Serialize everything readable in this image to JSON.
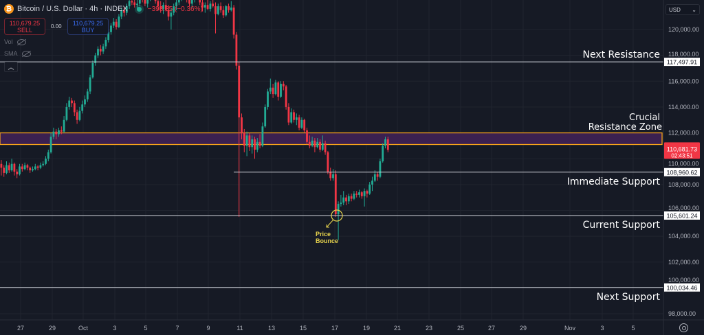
{
  "header": {
    "title": "Bitcoin / U.S. Dollar · 4h · INDEX",
    "change": "−398.35 (−0.36%)",
    "sell_price": "110,679.25",
    "sell_label": "SELL",
    "spread": "0.00",
    "buy_price": "110,679.25",
    "buy_label": "BUY",
    "indicators": [
      "Vol",
      "SMA"
    ],
    "currency": "USD"
  },
  "colors": {
    "background": "#161a25",
    "up": "#22ab94",
    "down": "#f23645",
    "level_line": "#d1d4dc",
    "zone_fill": "#3b2050",
    "zone_border": "#f7a21b",
    "annotation": "#ffffff",
    "bounce": "#e8d44d"
  },
  "chart_data": {
    "type": "candlestick",
    "interval": "4h",
    "title": "Bitcoin / U.S. Dollar · 4h · INDEX",
    "ylim": [
      97400,
      122300
    ],
    "y_ticks": [
      120000,
      118000,
      116000,
      114000,
      112000,
      110000,
      108000,
      106000,
      104000,
      102000,
      100000,
      98000
    ],
    "y_tick_labels": [
      "120,000.00",
      "118,000.00",
      "116,000.00",
      "114,000.00",
      "112,000.00",
      "110,000.00",
      "108,000.00",
      "106,000.00",
      "104,000.00",
      "102,000.00",
      "100,000.00",
      "98,000.00"
    ],
    "x_tick_labels": [
      "27",
      "29",
      "Oct",
      "3",
      "5",
      "7",
      "9",
      "11",
      "13",
      "15",
      "17",
      "19",
      "21",
      "23",
      "25",
      "27",
      "29",
      "Nov",
      "3",
      "5"
    ],
    "grid": true,
    "current_price": {
      "value": "110,681.73",
      "countdown": "02:43:51"
    },
    "candles_ohlc": [
      [
        109600,
        109900,
        108700,
        109300
      ],
      [
        109300,
        109500,
        108600,
        108900
      ],
      [
        108900,
        109800,
        108800,
        109500
      ],
      [
        109500,
        109700,
        108900,
        109100
      ],
      [
        109100,
        110000,
        109000,
        109600
      ],
      [
        109600,
        109700,
        108700,
        109000
      ],
      [
        109000,
        109200,
        108500,
        108800
      ],
      [
        108800,
        109600,
        108700,
        109400
      ],
      [
        109400,
        109600,
        109000,
        109200
      ],
      [
        109200,
        109700,
        109100,
        109500
      ],
      [
        109500,
        109600,
        109100,
        109300
      ],
      [
        109300,
        109400,
        108900,
        109100
      ],
      [
        109100,
        109400,
        109000,
        109200
      ],
      [
        109200,
        109600,
        109100,
        109400
      ],
      [
        109400,
        109500,
        109100,
        109300
      ],
      [
        109300,
        109700,
        109200,
        109500
      ],
      [
        109500,
        109800,
        109400,
        109600
      ],
      [
        109600,
        110200,
        109500,
        110000
      ],
      [
        110000,
        110700,
        109800,
        110500
      ],
      [
        110500,
        112000,
        110400,
        111700
      ],
      [
        111700,
        112400,
        111500,
        112100
      ],
      [
        112100,
        112300,
        111500,
        111900
      ],
      [
        111900,
        112400,
        111700,
        112200
      ],
      [
        112200,
        112500,
        111900,
        112100
      ],
      [
        112100,
        113300,
        112000,
        113000
      ],
      [
        113000,
        114300,
        112900,
        114000
      ],
      [
        114000,
        114800,
        113800,
        114500
      ],
      [
        114500,
        114700,
        114000,
        114300
      ],
      [
        114300,
        114500,
        113300,
        113600
      ],
      [
        113600,
        113800,
        112700,
        113000
      ],
      [
        113000,
        114000,
        112900,
        113700
      ],
      [
        113700,
        114500,
        113500,
        114200
      ],
      [
        114200,
        114900,
        114000,
        114600
      ],
      [
        114600,
        115400,
        114400,
        115200
      ],
      [
        115200,
        116500,
        115000,
        116300
      ],
      [
        116300,
        117600,
        116200,
        117400
      ],
      [
        117400,
        118200,
        117200,
        118000
      ],
      [
        118000,
        118700,
        117800,
        118500
      ],
      [
        118500,
        118800,
        118000,
        118300
      ],
      [
        118300,
        118900,
        118100,
        118700
      ],
      [
        118700,
        119400,
        118500,
        119200
      ],
      [
        119200,
        120000,
        119000,
        119800
      ],
      [
        119800,
        120500,
        119600,
        120300
      ],
      [
        120300,
        120900,
        120100,
        120600
      ],
      [
        120600,
        120800,
        120000,
        120200
      ],
      [
        120200,
        121200,
        120100,
        121000
      ],
      [
        121000,
        121700,
        120800,
        121500
      ],
      [
        121500,
        121700,
        121000,
        121300
      ],
      [
        121300,
        122000,
        121100,
        121800
      ],
      [
        121800,
        122500,
        121600,
        122200
      ],
      [
        122200,
        122600,
        121900,
        122100
      ],
      [
        122100,
        122500,
        121700,
        121900
      ],
      [
        121900,
        122300,
        121500,
        122000
      ],
      [
        122000,
        122800,
        121800,
        122500
      ],
      [
        122500,
        122900,
        122100,
        122300
      ],
      [
        122300,
        122700,
        121800,
        122000
      ],
      [
        122000,
        122600,
        121700,
        122400
      ],
      [
        122400,
        123000,
        122200,
        122700
      ],
      [
        122700,
        123100,
        122300,
        122500
      ],
      [
        122500,
        122900,
        122000,
        122200
      ],
      [
        122200,
        122500,
        121500,
        121800
      ],
      [
        121800,
        122200,
        121300,
        121600
      ],
      [
        121600,
        122100,
        121200,
        121900
      ],
      [
        121900,
        122300,
        121400,
        121500
      ],
      [
        121500,
        121900,
        120700,
        121000
      ],
      [
        121000,
        121600,
        120000,
        121300
      ],
      [
        121300,
        122000,
        121100,
        121800
      ],
      [
        121800,
        122300,
        121500,
        122100
      ],
      [
        122100,
        122700,
        121900,
        122500
      ],
      [
        122500,
        122900,
        122200,
        122800
      ],
      [
        122800,
        123200,
        122400,
        122600
      ],
      [
        122600,
        123000,
        122100,
        122300
      ],
      [
        122300,
        122600,
        121800,
        122000
      ],
      [
        122000,
        122500,
        121700,
        122300
      ],
      [
        122300,
        122900,
        122100,
        122700
      ],
      [
        122700,
        123100,
        122300,
        122400
      ],
      [
        122400,
        122700,
        121900,
        122100
      ],
      [
        122100,
        122500,
        121400,
        121700
      ],
      [
        121700,
        122100,
        121300,
        121900
      ],
      [
        121900,
        122300,
        121500,
        121600
      ],
      [
        121600,
        122200,
        121400,
        122000
      ],
      [
        122000,
        122400,
        121700,
        121800
      ],
      [
        121800,
        122100,
        119700,
        121200
      ],
      [
        121200,
        122000,
        121100,
        121800
      ],
      [
        121800,
        122100,
        121300,
        121500
      ],
      [
        121500,
        121800,
        120900,
        121100
      ],
      [
        121100,
        121900,
        121000,
        121800
      ],
      [
        121800,
        122000,
        121300,
        121500
      ],
      [
        121500,
        122200,
        121400,
        121700
      ],
      [
        121700,
        121900,
        119300,
        119600
      ],
      [
        119600,
        119800,
        116900,
        117200
      ],
      [
        117200,
        117500,
        105500,
        113200
      ],
      [
        113200,
        113500,
        111500,
        112000
      ],
      [
        112000,
        112300,
        110500,
        111000
      ],
      [
        111000,
        112100,
        110200,
        111800
      ],
      [
        111800,
        112000,
        110600,
        110900
      ],
      [
        110900,
        111800,
        110400,
        111500
      ],
      [
        111500,
        111700,
        110000,
        110700
      ],
      [
        110700,
        111600,
        110500,
        111300
      ],
      [
        111300,
        111900,
        110800,
        111000
      ],
      [
        111000,
        112800,
        110900,
        112500
      ],
      [
        112500,
        114200,
        112400,
        114000
      ],
      [
        114000,
        115400,
        113800,
        115200
      ],
      [
        115200,
        116200,
        115000,
        115500
      ],
      [
        115500,
        115800,
        114700,
        115000
      ],
      [
        115000,
        116100,
        114900,
        115900
      ],
      [
        115900,
        116000,
        114500,
        114800
      ],
      [
        114800,
        116000,
        114700,
        115800
      ],
      [
        115800,
        116000,
        115300,
        115600
      ],
      [
        115600,
        115700,
        113800,
        114000
      ],
      [
        114000,
        114300,
        112600,
        112800
      ],
      [
        112800,
        113900,
        112700,
        113600
      ],
      [
        113600,
        113800,
        112800,
        113000
      ],
      [
        113000,
        113500,
        112600,
        113200
      ],
      [
        113200,
        113400,
        112200,
        112400
      ],
      [
        112400,
        113200,
        112300,
        113000
      ],
      [
        113000,
        113100,
        112000,
        112200
      ],
      [
        112200,
        112400,
        111100,
        111300
      ],
      [
        111300,
        111800,
        110800,
        111000
      ],
      [
        111000,
        111700,
        110900,
        111400
      ],
      [
        111400,
        111600,
        110500,
        110900
      ],
      [
        110900,
        111600,
        110800,
        111300
      ],
      [
        111300,
        111500,
        110500,
        110700
      ],
      [
        110700,
        111800,
        110600,
        111200
      ],
      [
        111200,
        111400,
        110300,
        110500
      ],
      [
        110500,
        110600,
        108800,
        109000
      ],
      [
        109000,
        109300,
        108300,
        108500
      ],
      [
        108500,
        109200,
        108300,
        108800
      ],
      [
        108800,
        109100,
        105500,
        105700
      ],
      [
        105700,
        106700,
        103700,
        106500
      ],
      [
        106500,
        107200,
        106300,
        106600
      ],
      [
        106600,
        107500,
        106400,
        107000
      ],
      [
        107000,
        107200,
        106400,
        106700
      ],
      [
        106700,
        107300,
        106500,
        107100
      ],
      [
        107100,
        107300,
        106700,
        106900
      ],
      [
        106900,
        107500,
        106800,
        107300
      ],
      [
        107300,
        107500,
        107000,
        107200
      ],
      [
        107200,
        107600,
        107000,
        107400
      ],
      [
        107400,
        107500,
        106900,
        107100
      ],
      [
        107100,
        107700,
        106300,
        107500
      ],
      [
        107500,
        107600,
        107000,
        107300
      ],
      [
        107300,
        108200,
        107200,
        108000
      ],
      [
        108000,
        108600,
        107500,
        108300
      ],
      [
        108300,
        109100,
        108200,
        108800
      ],
      [
        108800,
        109000,
        108300,
        108600
      ],
      [
        108600,
        110000,
        108500,
        109800
      ],
      [
        109800,
        111200,
        109700,
        111000
      ],
      [
        111000,
        111700,
        110800,
        111500
      ],
      [
        111500,
        111700,
        110500,
        110682
      ]
    ],
    "levels": [
      {
        "label": "Next Resistance",
        "value": 117497.91,
        "value_label": "117,497.91"
      },
      {
        "label": "Immediate Support",
        "value": 108960.62,
        "value_label": "108,960.62",
        "partial": true
      },
      {
        "label": "Current Support",
        "value": 105601.24,
        "value_label": "105,601.24"
      },
      {
        "label": "Next Support",
        "value": 100034.46,
        "value_label": "100,034.46"
      }
    ],
    "zone": {
      "label_line1": "Crucial",
      "label_line2": "Resistance Zone",
      "low": 111100,
      "high": 112000
    },
    "annotation": {
      "line1": "Price",
      "line2": "Bounce",
      "price": 105601.24
    }
  }
}
